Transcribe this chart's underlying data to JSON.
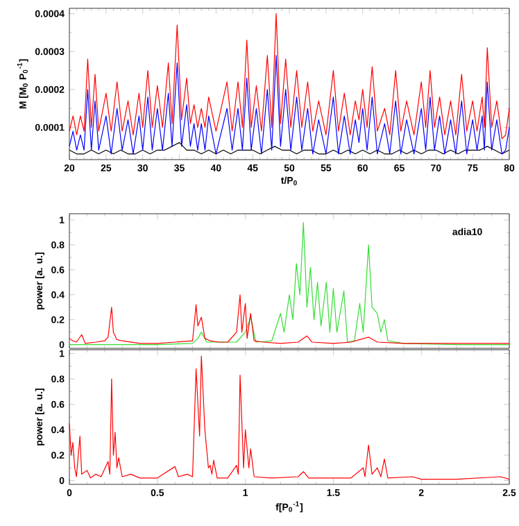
{
  "chart_data": [
    {
      "type": "line",
      "xlabel": "t/P$_{0}$",
      "ylabel": "M [M$_{0}$ P$_{0}$$^{-1}$]",
      "xlim": [
        20,
        80
      ],
      "ylim": [
        1.5e-05,
        0.000414
      ],
      "xticks": [
        20,
        25,
        30,
        35,
        40,
        45,
        50,
        55,
        60,
        65,
        70,
        75,
        80
      ],
      "yticks": [
        0.0001,
        0.0002,
        0.0003,
        0.0004
      ],
      "series": [
        {
          "color": "#ff0000",
          "x": [
            20,
            20.5,
            21,
            21.5,
            22,
            22.5,
            23,
            23.5,
            24,
            25,
            25.7,
            26.5,
            27.2,
            28,
            28.7,
            29.5,
            30,
            30.7,
            31.3,
            32,
            32.7,
            33.5,
            34,
            34.7,
            35.3,
            36,
            36.5,
            37,
            37.5,
            38,
            38.5,
            39,
            40,
            41.5,
            42.2,
            43,
            43.6,
            44.2,
            44.8,
            45.5,
            46.2,
            47,
            47.6,
            48.2,
            48.8,
            49.5,
            50.2,
            51,
            51.7,
            52.5,
            53.2,
            54,
            55,
            56,
            56.7,
            57.5,
            58.3,
            59,
            59.5,
            60,
            60.6,
            61.3,
            62,
            63,
            63.7,
            64.5,
            65.2,
            66,
            67,
            68,
            68.6,
            69.2,
            69.8,
            70.5,
            71.2,
            72,
            72.7,
            73.5,
            74.2,
            75,
            75.6,
            76.3,
            76.6,
            77,
            77.6,
            78.3,
            79,
            79.5,
            80
          ],
          "values": [
            9e-05,
            0.00013,
            8e-05,
            0.00013,
            9e-05,
            0.00028,
            0.0001,
            0.00024,
            9e-05,
            0.00019,
            9e-05,
            0.00022,
            9e-05,
            0.00017,
            8e-05,
            0.00019,
            0.0001,
            0.00025,
            0.0001,
            0.00021,
            0.0001,
            0.00027,
            0.00011,
            0.00037,
            0.00012,
            0.00023,
            0.00011,
            0.00016,
            0.0001,
            0.00015,
            0.0001,
            0.00018,
            9e-05,
            0.00022,
            9e-05,
            0.00022,
            0.0001,
            0.00033,
            0.0001,
            0.00021,
            9e-05,
            0.00029,
            0.0001,
            0.0004,
            0.00011,
            0.00028,
            0.0001,
            0.00025,
            0.0001,
            0.00022,
            9e-05,
            0.00017,
            8e-05,
            0.00025,
            9e-05,
            0.00019,
            8e-05,
            0.00017,
            0.00012,
            0.0002,
            0.0001,
            0.00026,
            9e-05,
            0.00015,
            8e-05,
            0.00025,
            9e-05,
            0.00017,
            8e-05,
            0.00022,
            0.0001,
            0.00025,
            0.0001,
            0.00018,
            8e-05,
            0.00017,
            8e-05,
            0.00024,
            9e-05,
            0.00017,
            9e-05,
            0.00018,
            0.0001,
            0.00031,
            0.0001,
            0.00017,
            7e-05,
            8e-05,
            0.00015
          ]
        },
        {
          "color": "#0000ff",
          "x": [
            20,
            20.5,
            21,
            21.5,
            22,
            22.5,
            23,
            23.5,
            24,
            25,
            25.7,
            26.5,
            27.2,
            28,
            28.7,
            29.5,
            30,
            30.7,
            31.3,
            32,
            32.7,
            33.5,
            34,
            34.7,
            35.3,
            36,
            36.5,
            37,
            37.5,
            38,
            38.5,
            39,
            40,
            41.5,
            42.2,
            43,
            43.6,
            44.2,
            44.8,
            45.5,
            46.2,
            47,
            47.6,
            48.2,
            48.8,
            49.5,
            50.2,
            51,
            51.7,
            52.5,
            53.2,
            54,
            55,
            56,
            56.7,
            57.5,
            58.3,
            59,
            59.5,
            60,
            60.6,
            61.3,
            62,
            63,
            63.7,
            64.5,
            65.2,
            66,
            67,
            68,
            68.6,
            69.2,
            69.8,
            70.5,
            71.2,
            72,
            72.7,
            73.5,
            74.2,
            75,
            75.6,
            76.3,
            76.6,
            77,
            77.6,
            78.3,
            79,
            79.5,
            80
          ],
          "values": [
            5e-05,
            9e-05,
            4e-05,
            8e-05,
            4e-05,
            0.0002,
            4e-05,
            0.00017,
            4e-05,
            0.00013,
            3e-05,
            0.00015,
            4e-05,
            0.00012,
            3e-05,
            0.00013,
            4e-05,
            0.00018,
            4e-05,
            0.00015,
            4e-05,
            0.00019,
            5e-05,
            0.00027,
            5e-05,
            0.00016,
            5e-05,
            0.00011,
            4e-05,
            0.00011,
            4e-05,
            0.00013,
            3e-05,
            0.00015,
            4e-05,
            0.00015,
            4e-05,
            0.00023,
            4e-05,
            0.00015,
            3e-05,
            0.0002,
            4e-05,
            0.00029,
            5e-05,
            0.0002,
            4e-05,
            0.00018,
            4e-05,
            0.00015,
            3e-05,
            0.00012,
            3e-05,
            0.00018,
            3e-05,
            0.00013,
            3e-05,
            0.00012,
            6e-05,
            0.00015,
            4e-05,
            0.00018,
            3e-05,
            0.00011,
            3e-05,
            0.00017,
            3e-05,
            0.00012,
            3e-05,
            0.00015,
            4e-05,
            0.00018,
            4e-05,
            0.00013,
            3e-05,
            0.00012,
            3e-05,
            0.00017,
            3e-05,
            0.00012,
            4e-05,
            0.00013,
            4e-05,
            0.00022,
            4e-05,
            0.00012,
            3e-05,
            4e-05,
            0.0001
          ]
        },
        {
          "color": "#000000",
          "x": [
            20,
            21,
            22,
            23,
            24,
            25,
            26,
            27,
            28,
            29,
            30,
            31,
            32,
            33,
            34,
            35,
            36,
            37,
            38,
            39,
            40,
            41,
            42,
            43,
            44,
            45,
            46,
            47,
            48,
            49,
            50,
            51,
            52,
            53,
            54,
            55,
            56,
            57,
            58,
            59,
            60,
            61,
            62,
            63,
            64,
            65,
            66,
            67,
            68,
            69,
            70,
            71,
            72,
            73,
            74,
            75,
            76,
            77,
            78,
            79,
            80
          ],
          "values": [
            4e-05,
            3e-05,
            3e-05,
            4e-05,
            3e-05,
            4e-05,
            3e-05,
            4e-05,
            3e-05,
            3e-05,
            4e-05,
            3e-05,
            4e-05,
            4e-05,
            5e-05,
            6e-05,
            4e-05,
            4e-05,
            3e-05,
            4e-05,
            3e-05,
            4e-05,
            3e-05,
            4e-05,
            4e-05,
            4e-05,
            3e-05,
            4e-05,
            5e-05,
            4e-05,
            4e-05,
            3e-05,
            4e-05,
            4e-05,
            3e-05,
            3e-05,
            4e-05,
            3e-05,
            4e-05,
            3e-05,
            4e-05,
            3e-05,
            4e-05,
            3e-05,
            3e-05,
            4e-05,
            3e-05,
            4e-05,
            3e-05,
            4e-05,
            4e-05,
            3e-05,
            4e-05,
            3e-05,
            4e-05,
            4e-05,
            4e-05,
            5e-05,
            4e-05,
            3e-05,
            4e-05
          ]
        }
      ]
    },
    {
      "type": "line",
      "ylabel": "power [a. u.]",
      "xlim": [
        0,
        2.5
      ],
      "ylim": [
        -0.03,
        1.05
      ],
      "xticks": [
        0,
        0.5,
        1,
        1.5,
        2,
        2.5
      ],
      "yticks": [
        0,
        0.2,
        0.4,
        0.6,
        0.8,
        1
      ],
      "tick_labels": "y",
      "annotations": [
        "adia10"
      ],
      "series": [
        {
          "color": "#ff0000",
          "x": [
            0,
            0.02,
            0.04,
            0.07,
            0.09,
            0.15,
            0.2,
            0.22,
            0.24,
            0.25,
            0.27,
            0.3,
            0.4,
            0.5,
            0.6,
            0.7,
            0.72,
            0.73,
            0.75,
            0.77,
            0.8,
            0.85,
            0.9,
            0.95,
            0.97,
            0.98,
            1.0,
            1.01,
            1.03,
            1.05,
            1.1,
            1.2,
            1.3,
            1.35,
            1.38,
            1.5,
            1.6,
            1.7,
            1.75,
            1.9,
            2.0,
            2.2,
            2.5
          ],
          "values": [
            0.05,
            0.03,
            0.02,
            0.08,
            0.01,
            0.02,
            0.03,
            0.06,
            0.3,
            0.1,
            0.04,
            0.03,
            0.01,
            0.01,
            0.02,
            0.03,
            0.32,
            0.15,
            0.22,
            0.05,
            0.03,
            0.02,
            0.02,
            0.1,
            0.4,
            0.1,
            0.33,
            0.05,
            0.25,
            0.03,
            0.02,
            0.01,
            0.02,
            0.07,
            0.02,
            0.01,
            0.02,
            0.06,
            0.02,
            0.01,
            0.01,
            0.01,
            0.01
          ]
        },
        {
          "color": "#33dd33",
          "x": [
            0,
            0.5,
            0.7,
            0.73,
            0.75,
            0.78,
            0.95,
            1.0,
            1.03,
            1.06,
            1.15,
            1.2,
            1.22,
            1.25,
            1.27,
            1.29,
            1.31,
            1.33,
            1.35,
            1.37,
            1.39,
            1.41,
            1.43,
            1.46,
            1.48,
            1.5,
            1.52,
            1.56,
            1.58,
            1.62,
            1.65,
            1.67,
            1.7,
            1.72,
            1.75,
            1.77,
            1.79,
            1.81,
            1.9,
            2.2,
            2.5
          ],
          "values": [
            0,
            0,
            0.01,
            0.05,
            0.1,
            0.02,
            0.02,
            0.1,
            0.22,
            0.02,
            0.03,
            0.25,
            0.1,
            0.4,
            0.2,
            0.65,
            0.4,
            0.98,
            0.3,
            0.62,
            0.2,
            0.5,
            0.15,
            0.5,
            0.1,
            0.45,
            0.1,
            0.43,
            0.02,
            0.03,
            0.33,
            0.1,
            0.8,
            0.3,
            0.25,
            0.1,
            0.2,
            0.03,
            0.01,
            0,
            0
          ]
        }
      ]
    },
    {
      "type": "line",
      "xlabel": "f[P$_{0}$$^{-1}$]",
      "ylabel": "power [a. u.]",
      "xlim": [
        0,
        2.5
      ],
      "ylim": [
        -0.03,
        1.03
      ],
      "xticks": [
        0,
        0.5,
        1,
        1.5,
        2,
        2.5
      ],
      "yticks": [
        0,
        0.2,
        0.4,
        0.6,
        0.8,
        1
      ],
      "series": [
        {
          "color": "#ff0000",
          "x": [
            0,
            0.01,
            0.02,
            0.03,
            0.04,
            0.06,
            0.07,
            0.1,
            0.12,
            0.15,
            0.18,
            0.22,
            0.23,
            0.24,
            0.25,
            0.26,
            0.27,
            0.28,
            0.3,
            0.35,
            0.4,
            0.5,
            0.6,
            0.62,
            0.67,
            0.7,
            0.72,
            0.74,
            0.75,
            0.77,
            0.79,
            0.8,
            0.81,
            0.82,
            0.84,
            0.9,
            0.95,
            0.96,
            0.97,
            0.99,
            1.0,
            1.02,
            1.03,
            1.05,
            1.15,
            1.3,
            1.33,
            1.36,
            1.5,
            1.6,
            1.67,
            1.68,
            1.7,
            1.72,
            1.75,
            1.77,
            1.79,
            1.81,
            1.95,
            2.0,
            2.2,
            2.45,
            2.5
          ],
          "values": [
            0.45,
            0.2,
            0.3,
            0.1,
            0.03,
            0.35,
            0.05,
            0.08,
            0.02,
            0.05,
            0.03,
            0.15,
            0.05,
            0.8,
            0.2,
            0.38,
            0.1,
            0.18,
            0.03,
            0.05,
            0.02,
            0.02,
            0.11,
            0.03,
            0.05,
            0.03,
            0.88,
            0.35,
            0.98,
            0.4,
            0.1,
            0.12,
            0.05,
            0.16,
            0.02,
            0.02,
            0.12,
            0.05,
            0.83,
            0.1,
            0.4,
            0.1,
            0.25,
            0.03,
            0.02,
            0.03,
            0.07,
            0.02,
            0.02,
            0.02,
            0.1,
            0.03,
            0.28,
            0.05,
            0.1,
            0.03,
            0.17,
            0.02,
            0.03,
            0.01,
            0.01,
            0.03,
            0.01
          ]
        }
      ]
    }
  ]
}
